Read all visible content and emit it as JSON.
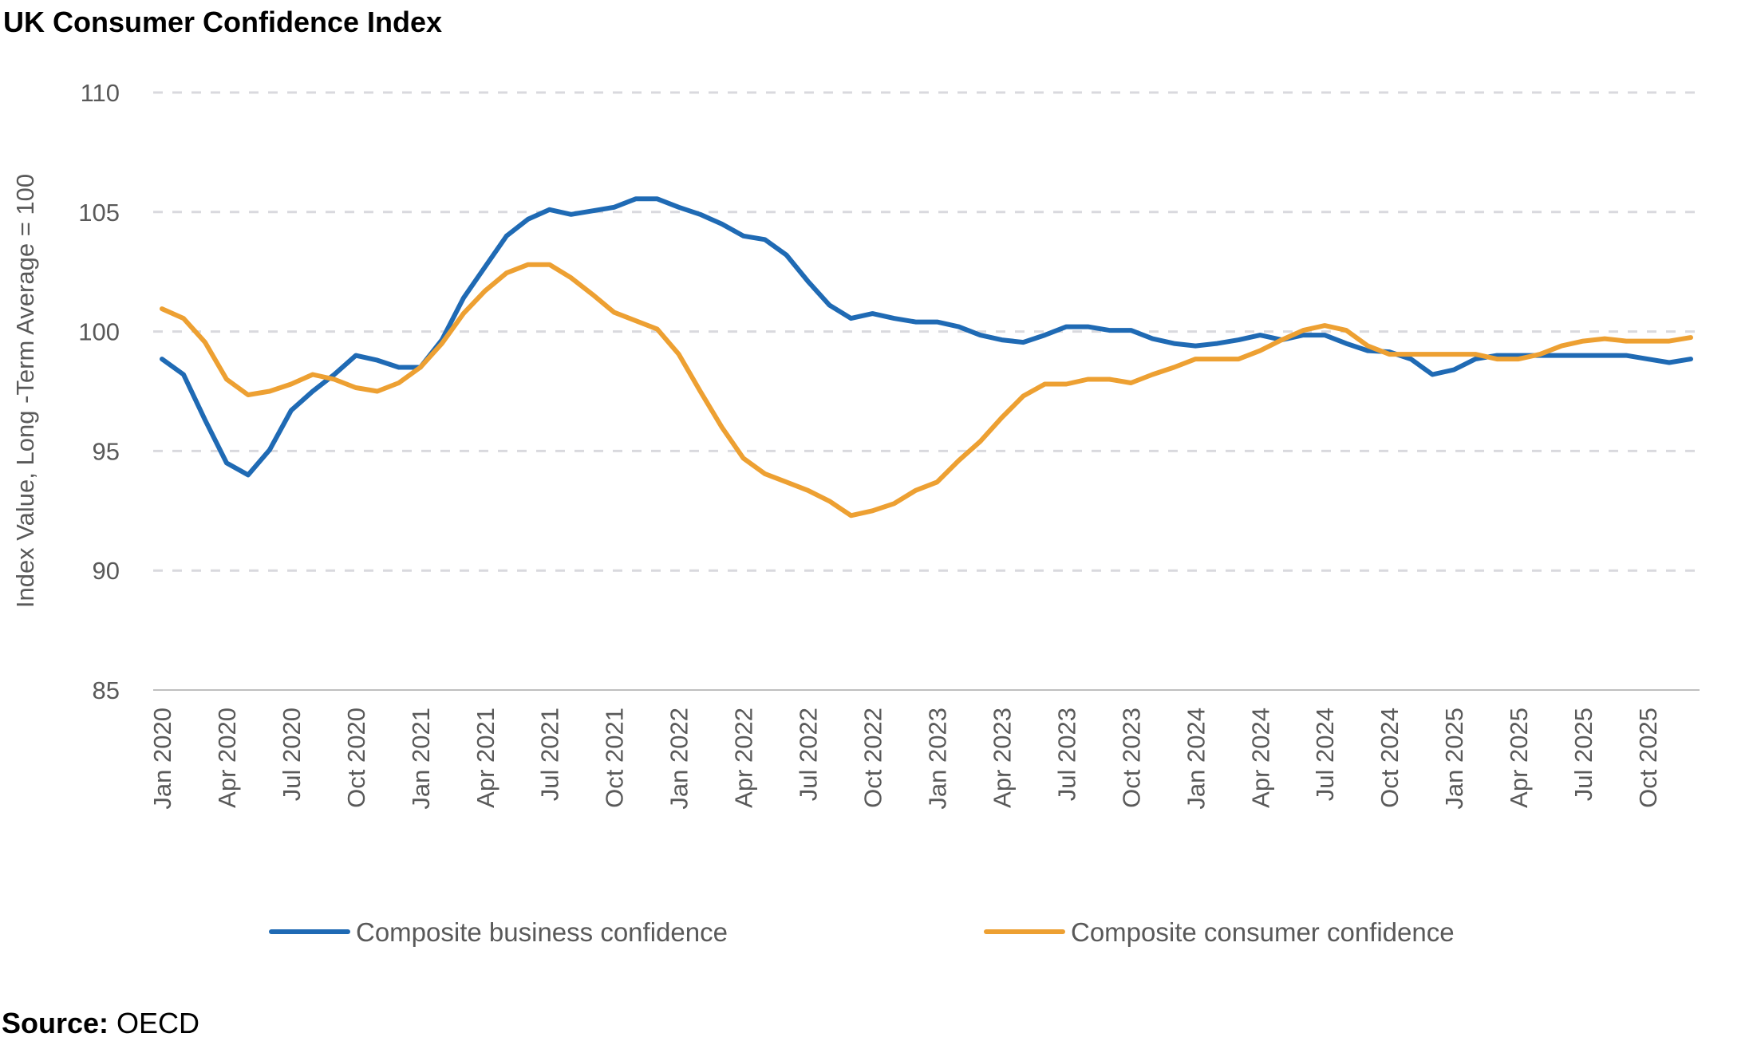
{
  "chart_data": {
    "type": "line",
    "title": "UK Consumer Confidence Index",
    "ylabel": "Index Value, Long -Term Average = 100",
    "xlabel": "",
    "ylim": [
      85,
      110
    ],
    "yticks": [
      85,
      90,
      95,
      100,
      105,
      110
    ],
    "grid": true,
    "legend_position": "bottom",
    "x_start": "Jan 2020",
    "x_end": "Dec 2025",
    "xtick_labels": [
      "Jan 2020",
      "Apr 2020",
      "Jul 2020",
      "Oct 2020",
      "Jan 2021",
      "Apr 2021",
      "Jul 2021",
      "Oct 2021",
      "Jan 2022",
      "Apr 2022",
      "Jul 2022",
      "Oct 2022",
      "Jan 2023",
      "Apr 2023",
      "Jul 2023",
      "Oct 2023",
      "Jan 2024",
      "Apr 2024",
      "Jul 2024",
      "Oct 2024",
      "Jan 2025",
      "Apr 2025",
      "Jul 2025",
      "Oct 2025"
    ],
    "series": [
      {
        "name": "Composite business confidence",
        "color": "#1f6ab4",
        "values": [
          98.85,
          98.2,
          96.3,
          94.5,
          94.0,
          95.05,
          96.7,
          97.5,
          98.2,
          99.0,
          98.8,
          98.5,
          98.5,
          99.65,
          101.4,
          102.7,
          104.0,
          104.7,
          105.1,
          104.9,
          105.05,
          105.2,
          105.55,
          105.55,
          105.2,
          104.9,
          104.5,
          104.0,
          103.85,
          103.2,
          102.1,
          101.1,
          100.55,
          100.75,
          100.55,
          100.4,
          100.4,
          100.2,
          99.85,
          99.65,
          99.55,
          99.85,
          100.2,
          100.2,
          100.05,
          100.05,
          99.7,
          99.5,
          99.4,
          99.5,
          99.65,
          99.85,
          99.65,
          99.85,
          99.85,
          99.5,
          99.2,
          99.15,
          98.85,
          98.2,
          98.4,
          98.85,
          99.0,
          99.0,
          99.0,
          99.0,
          99.0,
          99.0,
          99.0,
          98.85,
          98.7,
          98.85
        ]
      },
      {
        "name": "Composite consumer confidence",
        "color": "#eda032",
        "values": [
          100.95,
          100.55,
          99.55,
          98.0,
          97.35,
          97.5,
          97.8,
          98.2,
          98.0,
          97.65,
          97.5,
          97.85,
          98.5,
          99.5,
          100.75,
          101.7,
          102.45,
          102.8,
          102.8,
          102.25,
          101.55,
          100.8,
          100.45,
          100.1,
          99.05,
          97.5,
          96.0,
          94.7,
          94.05,
          93.7,
          93.35,
          92.9,
          92.3,
          92.5,
          92.8,
          93.35,
          93.7,
          94.6,
          95.4,
          96.4,
          97.3,
          97.8,
          97.8,
          98.0,
          98.0,
          97.85,
          98.2,
          98.5,
          98.85,
          98.85,
          98.85,
          99.2,
          99.65,
          100.05,
          100.25,
          100.05,
          99.4,
          99.05,
          99.05,
          99.05,
          99.05,
          99.05,
          98.85,
          98.85,
          99.05,
          99.4,
          99.6,
          99.7,
          99.6,
          99.6,
          99.6,
          99.75
        ]
      }
    ]
  },
  "source": {
    "label": "Source:",
    "value": "OECD"
  },
  "colors": {
    "grid": "#d9d9de",
    "axis": "#bfbfbf",
    "text": "#595959"
  }
}
